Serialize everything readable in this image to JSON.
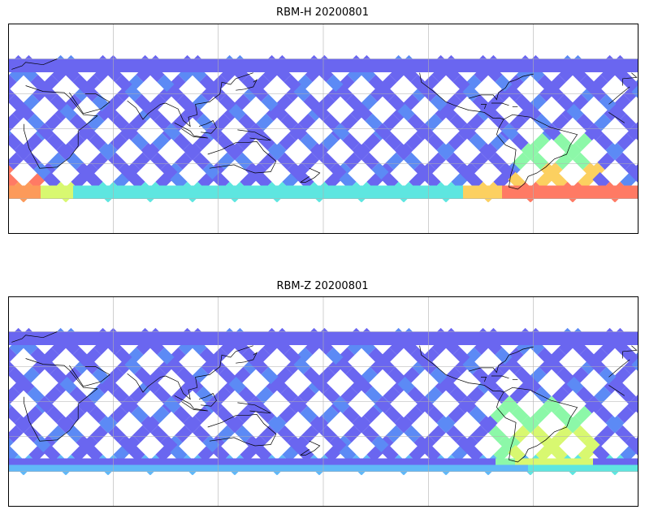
{
  "panels": [
    {
      "title": "RBM-H 20200801",
      "scheme": "rbmh",
      "palette": [
        "#6a66f0",
        "#5c8af5",
        "#60b8f8",
        "#5ee6e0",
        "#8cf8a8",
        "#d8f870",
        "#fcd060",
        "#fc9a5a",
        "#ff7a64"
      ]
    },
    {
      "title": "RBM-Z 20200801",
      "scheme": "rbmz",
      "palette": [
        "#6a66f0",
        "#5c8af5",
        "#60b8f8",
        "#5ee6e0",
        "#8cf8a8",
        "#d8f870",
        "#f8f460"
      ]
    }
  ],
  "map": {
    "central_longitude": 180,
    "lon_gridlines": [
      0,
      60,
      120,
      180,
      240,
      300
    ],
    "lat_gridlines": [
      -60,
      -30,
      0,
      30,
      60
    ],
    "coverage_lat": [
      -60,
      60
    ],
    "coastline_color": "#000000",
    "gridline_color": "#b0b0b0"
  }
}
